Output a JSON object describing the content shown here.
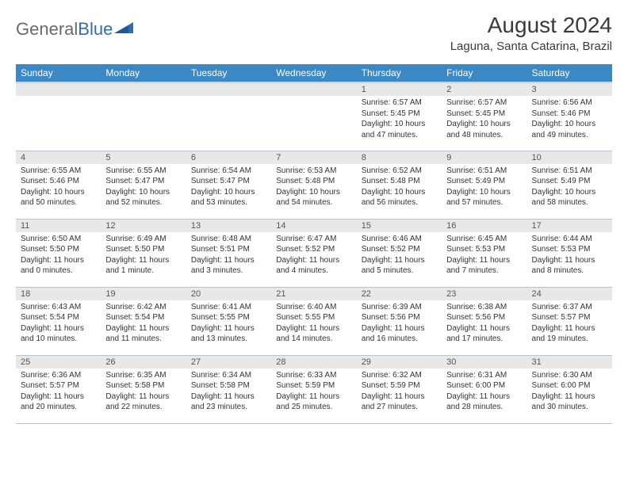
{
  "brand": {
    "part1": "General",
    "part2": "Blue"
  },
  "title": "August 2024",
  "location": "Laguna, Santa Catarina, Brazil",
  "colors": {
    "header_bg": "#3b88c4",
    "header_text": "#ffffff",
    "daynum_bg": "#e8e8e8",
    "row_border": "#b8c4cf",
    "text": "#333333",
    "logo_gray": "#6a6a6a",
    "logo_blue": "#2d6fb5"
  },
  "weekdays": [
    "Sunday",
    "Monday",
    "Tuesday",
    "Wednesday",
    "Thursday",
    "Friday",
    "Saturday"
  ],
  "cells": [
    {
      "day": "",
      "sunrise": "",
      "sunset": "",
      "daylight": ""
    },
    {
      "day": "",
      "sunrise": "",
      "sunset": "",
      "daylight": ""
    },
    {
      "day": "",
      "sunrise": "",
      "sunset": "",
      "daylight": ""
    },
    {
      "day": "",
      "sunrise": "",
      "sunset": "",
      "daylight": ""
    },
    {
      "day": "1",
      "sunrise": "Sunrise: 6:57 AM",
      "sunset": "Sunset: 5:45 PM",
      "daylight": "Daylight: 10 hours and 47 minutes."
    },
    {
      "day": "2",
      "sunrise": "Sunrise: 6:57 AM",
      "sunset": "Sunset: 5:45 PM",
      "daylight": "Daylight: 10 hours and 48 minutes."
    },
    {
      "day": "3",
      "sunrise": "Sunrise: 6:56 AM",
      "sunset": "Sunset: 5:46 PM",
      "daylight": "Daylight: 10 hours and 49 minutes."
    },
    {
      "day": "4",
      "sunrise": "Sunrise: 6:55 AM",
      "sunset": "Sunset: 5:46 PM",
      "daylight": "Daylight: 10 hours and 50 minutes."
    },
    {
      "day": "5",
      "sunrise": "Sunrise: 6:55 AM",
      "sunset": "Sunset: 5:47 PM",
      "daylight": "Daylight: 10 hours and 52 minutes."
    },
    {
      "day": "6",
      "sunrise": "Sunrise: 6:54 AM",
      "sunset": "Sunset: 5:47 PM",
      "daylight": "Daylight: 10 hours and 53 minutes."
    },
    {
      "day": "7",
      "sunrise": "Sunrise: 6:53 AM",
      "sunset": "Sunset: 5:48 PM",
      "daylight": "Daylight: 10 hours and 54 minutes."
    },
    {
      "day": "8",
      "sunrise": "Sunrise: 6:52 AM",
      "sunset": "Sunset: 5:48 PM",
      "daylight": "Daylight: 10 hours and 56 minutes."
    },
    {
      "day": "9",
      "sunrise": "Sunrise: 6:51 AM",
      "sunset": "Sunset: 5:49 PM",
      "daylight": "Daylight: 10 hours and 57 minutes."
    },
    {
      "day": "10",
      "sunrise": "Sunrise: 6:51 AM",
      "sunset": "Sunset: 5:49 PM",
      "daylight": "Daylight: 10 hours and 58 minutes."
    },
    {
      "day": "11",
      "sunrise": "Sunrise: 6:50 AM",
      "sunset": "Sunset: 5:50 PM",
      "daylight": "Daylight: 11 hours and 0 minutes."
    },
    {
      "day": "12",
      "sunrise": "Sunrise: 6:49 AM",
      "sunset": "Sunset: 5:50 PM",
      "daylight": "Daylight: 11 hours and 1 minute."
    },
    {
      "day": "13",
      "sunrise": "Sunrise: 6:48 AM",
      "sunset": "Sunset: 5:51 PM",
      "daylight": "Daylight: 11 hours and 3 minutes."
    },
    {
      "day": "14",
      "sunrise": "Sunrise: 6:47 AM",
      "sunset": "Sunset: 5:52 PM",
      "daylight": "Daylight: 11 hours and 4 minutes."
    },
    {
      "day": "15",
      "sunrise": "Sunrise: 6:46 AM",
      "sunset": "Sunset: 5:52 PM",
      "daylight": "Daylight: 11 hours and 5 minutes."
    },
    {
      "day": "16",
      "sunrise": "Sunrise: 6:45 AM",
      "sunset": "Sunset: 5:53 PM",
      "daylight": "Daylight: 11 hours and 7 minutes."
    },
    {
      "day": "17",
      "sunrise": "Sunrise: 6:44 AM",
      "sunset": "Sunset: 5:53 PM",
      "daylight": "Daylight: 11 hours and 8 minutes."
    },
    {
      "day": "18",
      "sunrise": "Sunrise: 6:43 AM",
      "sunset": "Sunset: 5:54 PM",
      "daylight": "Daylight: 11 hours and 10 minutes."
    },
    {
      "day": "19",
      "sunrise": "Sunrise: 6:42 AM",
      "sunset": "Sunset: 5:54 PM",
      "daylight": "Daylight: 11 hours and 11 minutes."
    },
    {
      "day": "20",
      "sunrise": "Sunrise: 6:41 AM",
      "sunset": "Sunset: 5:55 PM",
      "daylight": "Daylight: 11 hours and 13 minutes."
    },
    {
      "day": "21",
      "sunrise": "Sunrise: 6:40 AM",
      "sunset": "Sunset: 5:55 PM",
      "daylight": "Daylight: 11 hours and 14 minutes."
    },
    {
      "day": "22",
      "sunrise": "Sunrise: 6:39 AM",
      "sunset": "Sunset: 5:56 PM",
      "daylight": "Daylight: 11 hours and 16 minutes."
    },
    {
      "day": "23",
      "sunrise": "Sunrise: 6:38 AM",
      "sunset": "Sunset: 5:56 PM",
      "daylight": "Daylight: 11 hours and 17 minutes."
    },
    {
      "day": "24",
      "sunrise": "Sunrise: 6:37 AM",
      "sunset": "Sunset: 5:57 PM",
      "daylight": "Daylight: 11 hours and 19 minutes."
    },
    {
      "day": "25",
      "sunrise": "Sunrise: 6:36 AM",
      "sunset": "Sunset: 5:57 PM",
      "daylight": "Daylight: 11 hours and 20 minutes."
    },
    {
      "day": "26",
      "sunrise": "Sunrise: 6:35 AM",
      "sunset": "Sunset: 5:58 PM",
      "daylight": "Daylight: 11 hours and 22 minutes."
    },
    {
      "day": "27",
      "sunrise": "Sunrise: 6:34 AM",
      "sunset": "Sunset: 5:58 PM",
      "daylight": "Daylight: 11 hours and 23 minutes."
    },
    {
      "day": "28",
      "sunrise": "Sunrise: 6:33 AM",
      "sunset": "Sunset: 5:59 PM",
      "daylight": "Daylight: 11 hours and 25 minutes."
    },
    {
      "day": "29",
      "sunrise": "Sunrise: 6:32 AM",
      "sunset": "Sunset: 5:59 PM",
      "daylight": "Daylight: 11 hours and 27 minutes."
    },
    {
      "day": "30",
      "sunrise": "Sunrise: 6:31 AM",
      "sunset": "Sunset: 6:00 PM",
      "daylight": "Daylight: 11 hours and 28 minutes."
    },
    {
      "day": "31",
      "sunrise": "Sunrise: 6:30 AM",
      "sunset": "Sunset: 6:00 PM",
      "daylight": "Daylight: 11 hours and 30 minutes."
    }
  ]
}
